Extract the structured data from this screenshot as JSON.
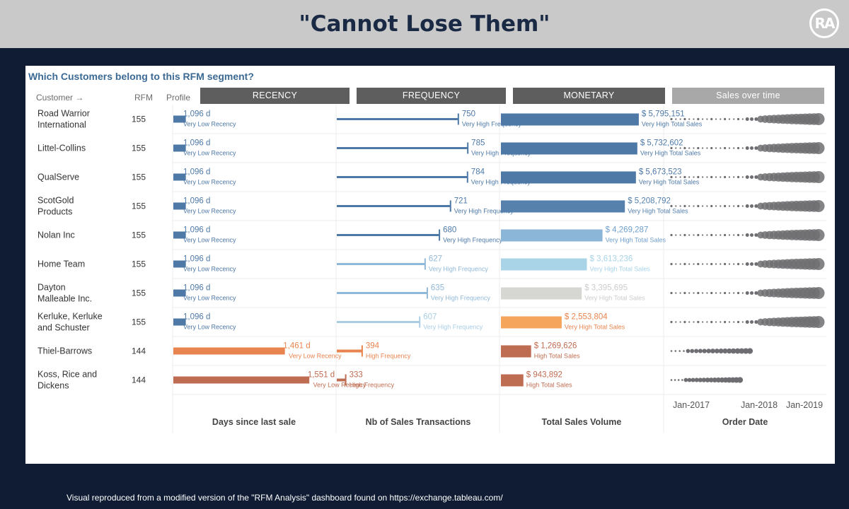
{
  "header": {
    "title": "\"Cannot Lose Them\"",
    "logo_text": "RA"
  },
  "panel": {
    "title": "Which Customers belong to this RFM segment?",
    "customer_header": "Customer",
    "customer_arrow": "→",
    "rfm_header": "RFM",
    "profile_header": "Profile",
    "bands": {
      "recency": "RECENCY",
      "frequency": "FREQUENCY",
      "monetary": "MONETARY",
      "sales_over_time": "Sales over time"
    }
  },
  "footer": {
    "text": "Visual reproduced from a modified version of the \"RFM Analysis\" dashboard found on https://exchange.tableau.com/"
  },
  "chart_data": {
    "type": "bar",
    "categories": [
      "Road Warrior International",
      "Littel-Collins",
      "QualServe",
      "ScotGold Products",
      "Nolan Inc",
      "Home Team",
      "Dayton Malleable Inc.",
      "Kerluke, Kerluke and Schuster",
      "Thiel-Barrows",
      "Koss, Rice and Dickens"
    ],
    "category_lines": [
      [
        "Road Warrior",
        "International"
      ],
      [
        "Littel-Collins"
      ],
      [
        "QualServe"
      ],
      [
        "ScotGold",
        "Products"
      ],
      [
        "Nolan Inc"
      ],
      [
        "Home Team"
      ],
      [
        "Dayton",
        "Malleable Inc."
      ],
      [
        "Kerluke, Kerluke",
        "and Schuster"
      ],
      [
        "Thiel-Barrows"
      ],
      [
        "Koss, Rice and",
        "Dickens"
      ]
    ],
    "rfm": [
      "155",
      "155",
      "155",
      "155",
      "155",
      "155",
      "155",
      "155",
      "144",
      "144"
    ],
    "recency": {
      "xlabel": "Days since last sale",
      "values": [
        1096,
        1096,
        1096,
        1096,
        1096,
        1096,
        1096,
        1096,
        1461,
        1551
      ],
      "labels": [
        "1,096 d",
        "1,096 d",
        "1,096 d",
        "1,096 d",
        "1,096 d",
        "1,096 d",
        "1,096 d",
        "1,096 d",
        "1,461 d",
        "1,551 d"
      ],
      "classes": [
        "Very Low Recency",
        "Very Low Recency",
        "Very Low Recency",
        "Very Low Recency",
        "Very Low Recency",
        "Very Low Recency",
        "Very Low Recency",
        "Very Low Recency",
        "Very Low Recency",
        "Very Low Recency"
      ],
      "colors": [
        "#4e79a7",
        "#4e79a7",
        "#4e79a7",
        "#4e79a7",
        "#4e79a7",
        "#4e79a7",
        "#4e79a7",
        "#4e79a7",
        "#e8844f",
        "#bf6d52"
      ],
      "xlim": [
        1050,
        1600
      ]
    },
    "frequency": {
      "xlabel": "Nb of Sales Transactions",
      "values": [
        750,
        785,
        784,
        721,
        680,
        627,
        635,
        607,
        394,
        333
      ],
      "labels": [
        "750",
        "785",
        "784",
        "721",
        "680",
        "627",
        "635",
        "607",
        "394",
        "333"
      ],
      "classes": [
        "Very High Frequency",
        "Very High Frequency",
        "Very High Frequency",
        "Very High Frequency",
        "Very High Frequency",
        "Very High Frequency",
        "Very High Frequency",
        "Very High Frequency",
        "High Frequency",
        "High Frequency"
      ],
      "colors": [
        "#4e79a7",
        "#4e79a7",
        "#4e79a7",
        "#4e79a7",
        "#4e79a7",
        "#90b8d8",
        "#90b8d8",
        "#a9cde3",
        "#e8844f",
        "#bf6d52"
      ],
      "xlim": [
        300,
        850
      ]
    },
    "monetary": {
      "xlabel": "Total Sales Volume",
      "values": [
        5795151,
        5732602,
        5673523,
        5208792,
        4269287,
        3613236,
        3395695,
        2553804,
        1269626,
        943892
      ],
      "labels": [
        "$ 5,795,151",
        "$ 5,732,602",
        "$ 5,673,523",
        "$ 5,208,792",
        "$ 4,269,287",
        "$ 3,613,236",
        "$ 3,395,695",
        "$ 2,553,804",
        "$ 1,269,626",
        "$ 943,892"
      ],
      "classes": [
        "Very High Total Sales",
        "Very High Total Sales",
        "Very High Total Sales",
        "Very High Total Sales",
        "Very High Total Sales",
        "Very High Total Sales",
        "Very High Total Sales",
        "Very High Total Sales",
        "High Total Sales",
        "High Total Sales"
      ],
      "colors": [
        "#4e79a7",
        "#4e79a7",
        "#4e79a7",
        "#5681ad",
        "#8cb6d8",
        "#a9d4e8",
        "#d6d6d2",
        "#f5a55c",
        "#bf6d52",
        "#bf6d52"
      ],
      "label_colors": [
        "#4e79a7",
        "#4e79a7",
        "#4e79a7",
        "#5681ad",
        "#6f9fcb",
        "#a9d4e8",
        "#cccccc",
        "#e8844f",
        "#bf6d52",
        "#bf6d52"
      ],
      "xlim": [
        0,
        6600000
      ]
    },
    "sales_over_time": {
      "xlabel": "Order Date",
      "ticks": [
        "Jan-2017",
        "Jan-2018",
        "Jan-2019"
      ],
      "dot_color": "#6e6e72"
    }
  }
}
